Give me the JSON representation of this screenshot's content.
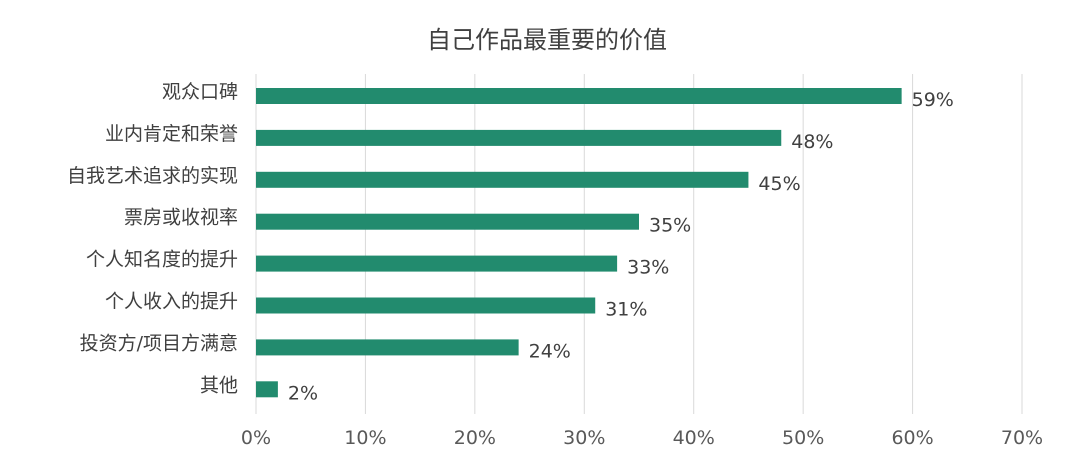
{
  "chart_data": {
    "type": "bar",
    "orientation": "horizontal",
    "title": "自己作品最重要的价值",
    "categories": [
      "观众口碑",
      "业内肯定和荣誉",
      "自我艺术追求的实现",
      "票房或收视率",
      "个人知名度的提升",
      "个人收入的提升",
      "投资方/项目方满意",
      "其他"
    ],
    "values": [
      59,
      48,
      45,
      35,
      33,
      31,
      24,
      2
    ],
    "data_labels": [
      "59%",
      "48%",
      "45%",
      "35%",
      "33%",
      "31%",
      "24%",
      "2%"
    ],
    "x_ticks": [
      0,
      10,
      20,
      30,
      40,
      50,
      60,
      70
    ],
    "x_tick_labels": [
      "0%",
      "10%",
      "20%",
      "30%",
      "40%",
      "50%",
      "60%",
      "70%"
    ],
    "xlim": [
      0,
      70
    ],
    "unit": "%",
    "grid": "vertical",
    "legend": "none",
    "bar_color": "#228b6e",
    "grid_color": "#d9d9d9"
  }
}
